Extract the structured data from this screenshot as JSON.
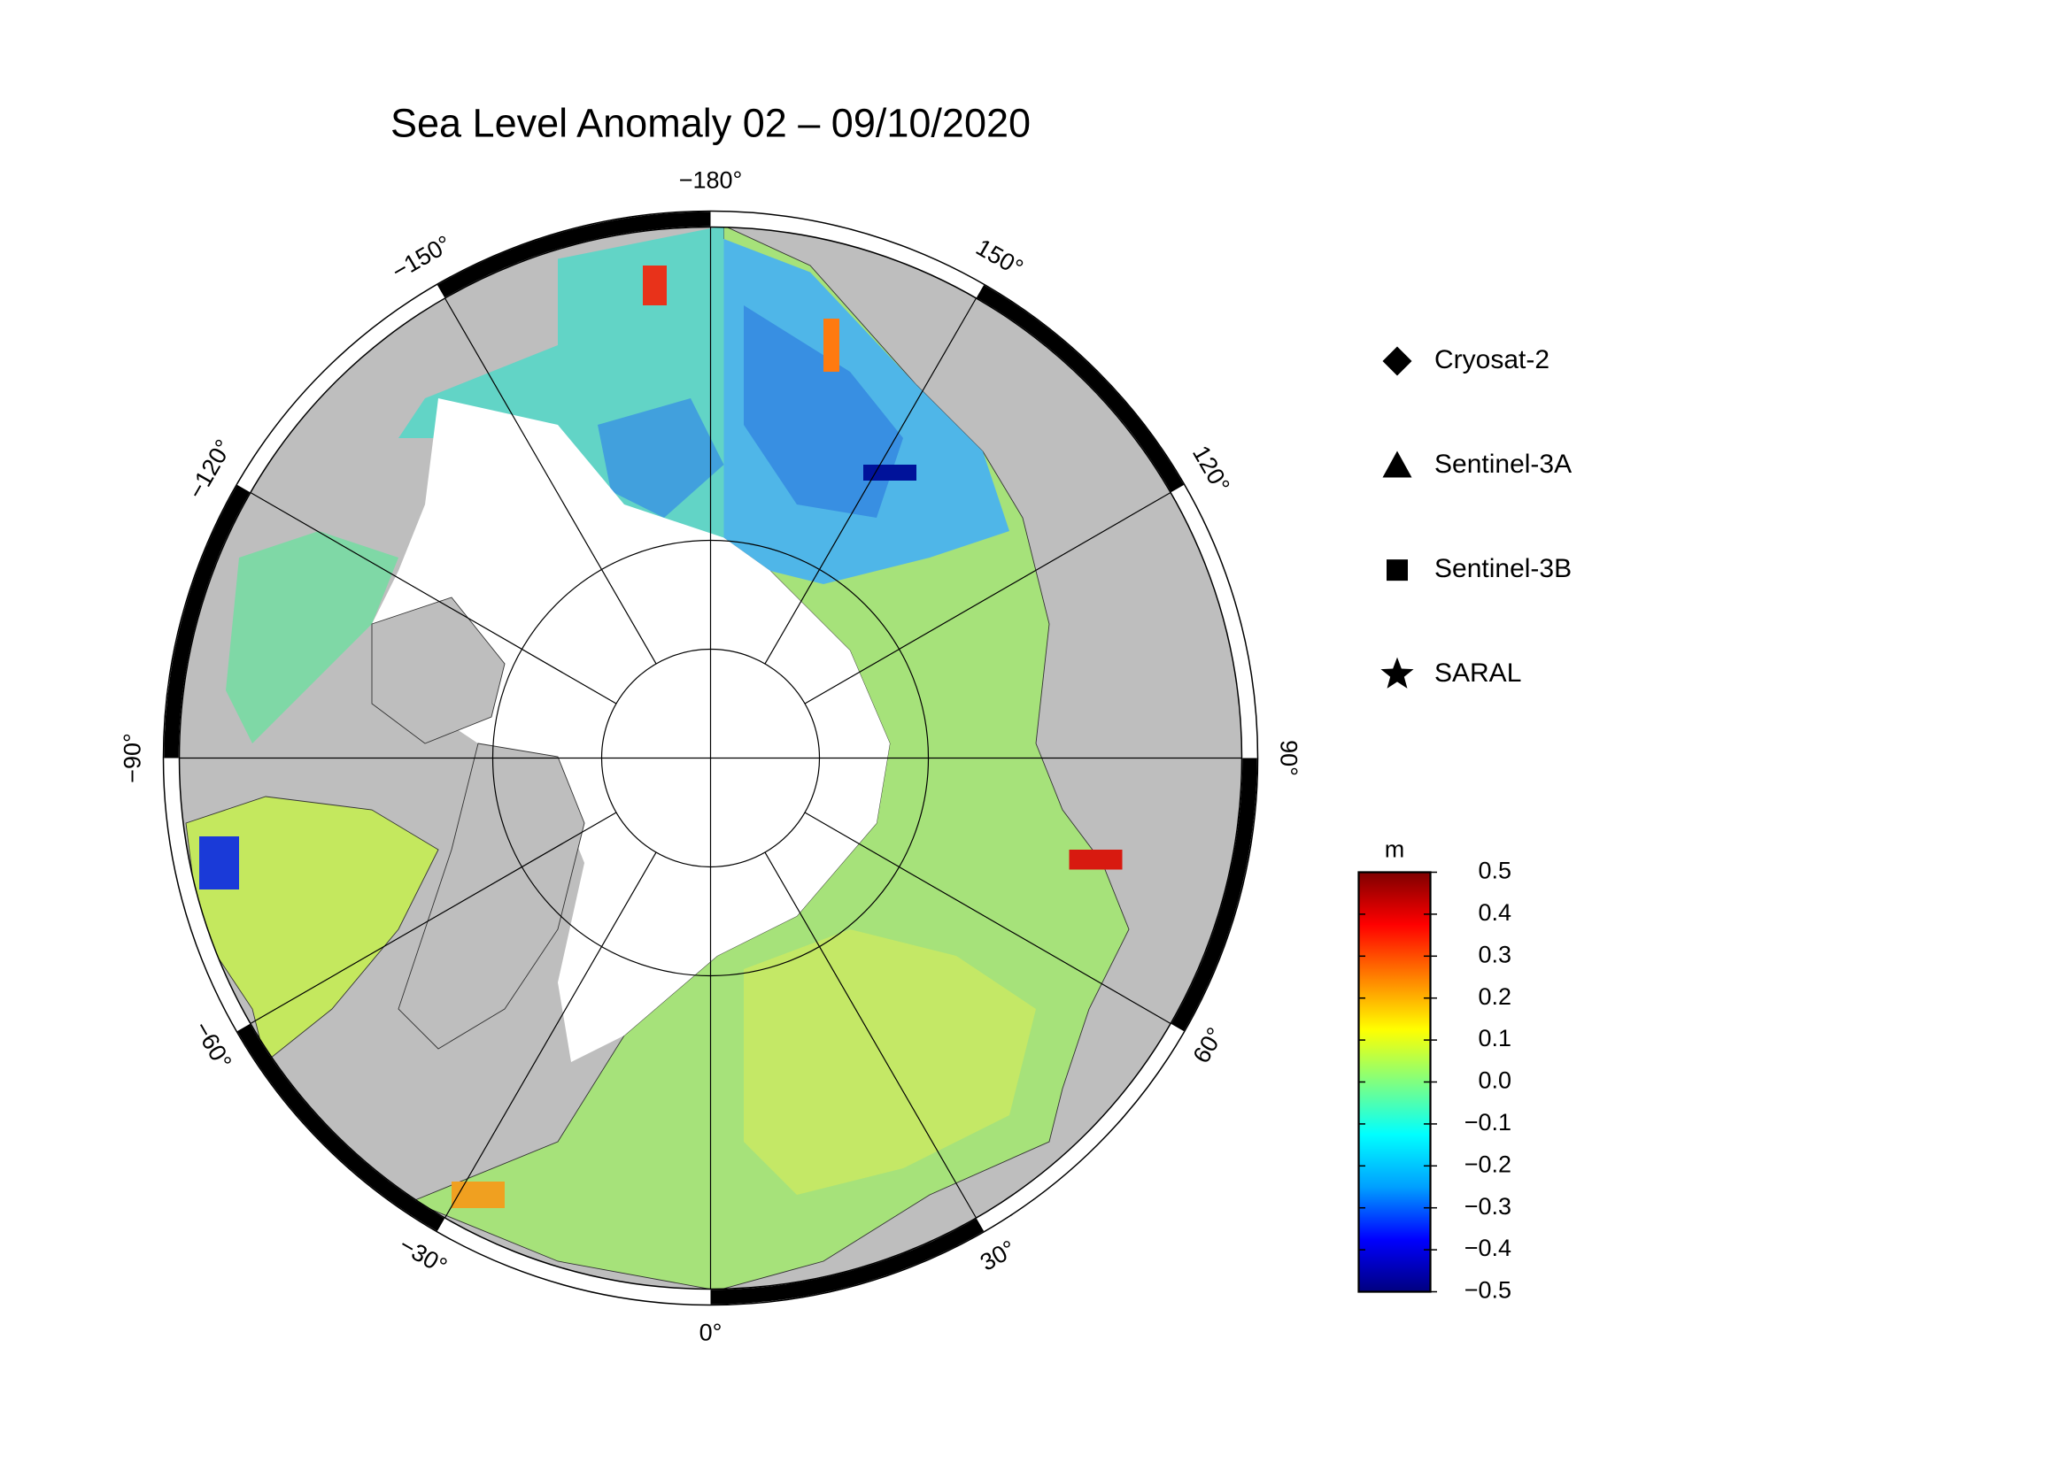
{
  "chart_data": {
    "type": "polar-map",
    "title": "Sea Level Anomaly 02 – 09/10/2020",
    "meridians": [
      {
        "value": -180,
        "label": "−180°"
      },
      {
        "value": -150,
        "label": "−150°"
      },
      {
        "value": -120,
        "label": "−120°"
      },
      {
        "value": -90,
        "label": "−90°"
      },
      {
        "value": -60,
        "label": "−60°"
      },
      {
        "value": -30,
        "label": "−30°"
      },
      {
        "value": 0,
        "label": "0°"
      },
      {
        "value": 30,
        "label": "30°"
      },
      {
        "value": 60,
        "label": "60°"
      },
      {
        "value": 90,
        "label": "90°"
      },
      {
        "value": 120,
        "label": "120°"
      },
      {
        "value": 150,
        "label": "150°"
      }
    ],
    "legend": [
      {
        "name": "Cryosat-2",
        "marker": "diamond"
      },
      {
        "name": "Sentinel-3A",
        "marker": "triangle"
      },
      {
        "name": "Sentinel-3B",
        "marker": "square"
      },
      {
        "name": "SARAL",
        "marker": "star"
      }
    ],
    "colorbar": {
      "label": "m",
      "lim": [
        -0.5,
        0.5
      ],
      "colors": [
        "#00007f",
        "#0000ff",
        "#00a0ff",
        "#00ffff",
        "#80ff80",
        "#ffff00",
        "#ff8000",
        "#ff0000",
        "#7f0000"
      ],
      "ticks": [
        0.5,
        0.4,
        0.3,
        0.2,
        0.1,
        {
          "value": 0,
          "label": "0.0"
        },
        {
          "value": -0.1,
          "label": "−0.1"
        },
        {
          "value": -0.2,
          "label": "−0.2"
        },
        {
          "value": -0.3,
          "label": "−0.3"
        },
        {
          "value": -0.4,
          "label": "−0.4"
        },
        {
          "value": -0.5,
          "label": "−0.5"
        }
      ]
    }
  }
}
